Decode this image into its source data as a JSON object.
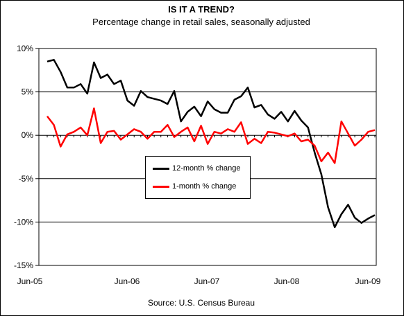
{
  "chart_data": {
    "type": "line",
    "title": "IS IT A TREND?",
    "subtitle": "Percentage change in retail sales, seasonally adjusted",
    "source": "Source: U.S. Census Bureau",
    "x_tick_labels": [
      "Jun-05",
      "Jun-06",
      "Jun-07",
      "Jun-08",
      "Jun-09"
    ],
    "y_tick_labels": [
      "10%",
      "5%",
      "0%",
      "-5%",
      "-10%",
      "-15%"
    ],
    "y_ticks": [
      10,
      5,
      0,
      -5,
      -10,
      -15
    ],
    "ylim": [
      -15,
      10
    ],
    "x_start": "Jun-05",
    "x_end": "Jun-09",
    "grid": "horizontal",
    "legend_position": "center",
    "series": [
      {
        "name": "12-month % change",
        "color": "#000000",
        "values": [
          8.5,
          8.7,
          7.3,
          5.5,
          5.5,
          5.9,
          4.8,
          8.4,
          6.6,
          7.0,
          5.9,
          6.3,
          4.0,
          3.4,
          5.1,
          4.4,
          4.2,
          4.0,
          3.6,
          5.1,
          1.6,
          2.7,
          3.3,
          2.2,
          3.9,
          3.0,
          2.6,
          2.6,
          4.1,
          4.5,
          5.5,
          3.2,
          3.5,
          2.4,
          1.9,
          2.7,
          1.6,
          2.8,
          1.7,
          0.9,
          -2.0,
          -4.5,
          -8.3,
          -10.6,
          -9.1,
          -8.0,
          -9.5,
          -10.1,
          -9.6,
          -9.2
        ]
      },
      {
        "name": "1-month % change",
        "color": "#ff0000",
        "values": [
          2.2,
          1.2,
          -1.3,
          0.1,
          0.4,
          0.9,
          0.0,
          3.1,
          -0.9,
          0.4,
          0.5,
          -0.5,
          0.1,
          0.7,
          0.4,
          -0.4,
          0.4,
          0.4,
          1.2,
          -0.2,
          0.4,
          0.9,
          -0.7,
          1.1,
          -1.0,
          0.4,
          0.2,
          0.7,
          0.4,
          1.5,
          -1.0,
          -0.4,
          -0.9,
          0.4,
          0.3,
          0.1,
          -0.1,
          0.2,
          -0.7,
          -0.5,
          -1.2,
          -3.0,
          -2.0,
          -3.2,
          1.6,
          0.2,
          -1.2,
          -0.5,
          0.4,
          0.6
        ]
      }
    ]
  }
}
